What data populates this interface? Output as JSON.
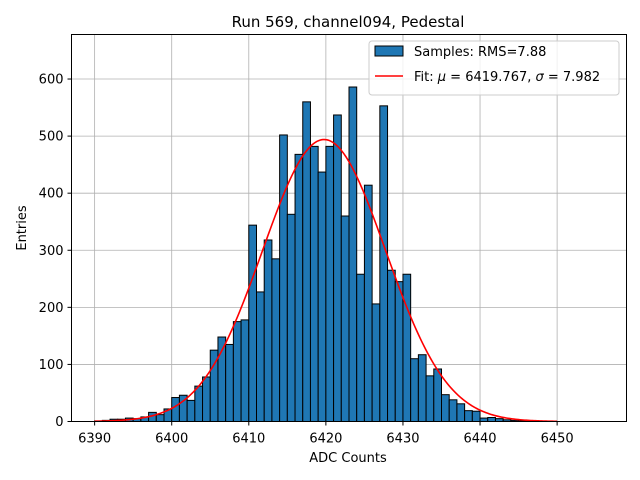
{
  "chart_data": {
    "type": "bar",
    "subtype": "histogram",
    "title": "Run 569, channel094, Pedestal",
    "xlabel": "ADC Counts",
    "ylabel": "Entries",
    "xlim": [
      6387,
      6459
    ],
    "ylim": [
      0,
      678
    ],
    "xticks": [
      6390,
      6400,
      6410,
      6420,
      6430,
      6440,
      6450
    ],
    "yticks": [
      0,
      100,
      200,
      300,
      400,
      500,
      600
    ],
    "grid": true,
    "legend_position": "upper right",
    "colors": {
      "bars": "#1f77b4",
      "bar_edge": "#000000",
      "fit": "#ff0000"
    },
    "histogram": {
      "name": "Samples: RMS=7.88",
      "bin_width": 1,
      "bin_starts": [
        6390,
        6391,
        6392,
        6393,
        6394,
        6395,
        6396,
        6397,
        6398,
        6399,
        6400,
        6401,
        6402,
        6403,
        6404,
        6405,
        6406,
        6407,
        6408,
        6409,
        6410,
        6411,
        6412,
        6413,
        6414,
        6415,
        6416,
        6417,
        6418,
        6419,
        6420,
        6421,
        6422,
        6423,
        6424,
        6425,
        6426,
        6427,
        6428,
        6429,
        6430,
        6431,
        6432,
        6433,
        6434,
        6435,
        6436,
        6437,
        6438,
        6439,
        6440,
        6441,
        6442,
        6443,
        6444,
        6445,
        6446,
        6447,
        6448,
        6449,
        6450,
        6451,
        6452,
        6453,
        6454,
        6455
      ],
      "counts": [
        1,
        2,
        4,
        4,
        6,
        5,
        8,
        16,
        12,
        22,
        42,
        46,
        37,
        62,
        78,
        125,
        148,
        135,
        175,
        178,
        344,
        227,
        318,
        285,
        502,
        363,
        468,
        560,
        482,
        437,
        482,
        537,
        360,
        586,
        258,
        414,
        206,
        553,
        265,
        245,
        258,
        110,
        117,
        80,
        92,
        47,
        38,
        31,
        19,
        18,
        6,
        7,
        5,
        3,
        2,
        1,
        1,
        0,
        0,
        0,
        0,
        0,
        0,
        0,
        0,
        0
      ]
    },
    "fit": {
      "name": "Fit: μ = 6419.767, σ = 7.982",
      "mu": 6419.767,
      "sigma": 7.982,
      "amplitude": 494,
      "x_range": [
        6390,
        6450
      ]
    }
  },
  "legend": {
    "samples_label": "Samples: RMS=7.88",
    "fit_label_prefix": "Fit: ",
    "fit_mu_symbol": "μ",
    "fit_mid": " = 6419.767, ",
    "fit_sigma_symbol": "σ",
    "fit_suffix": " = 7.982"
  }
}
